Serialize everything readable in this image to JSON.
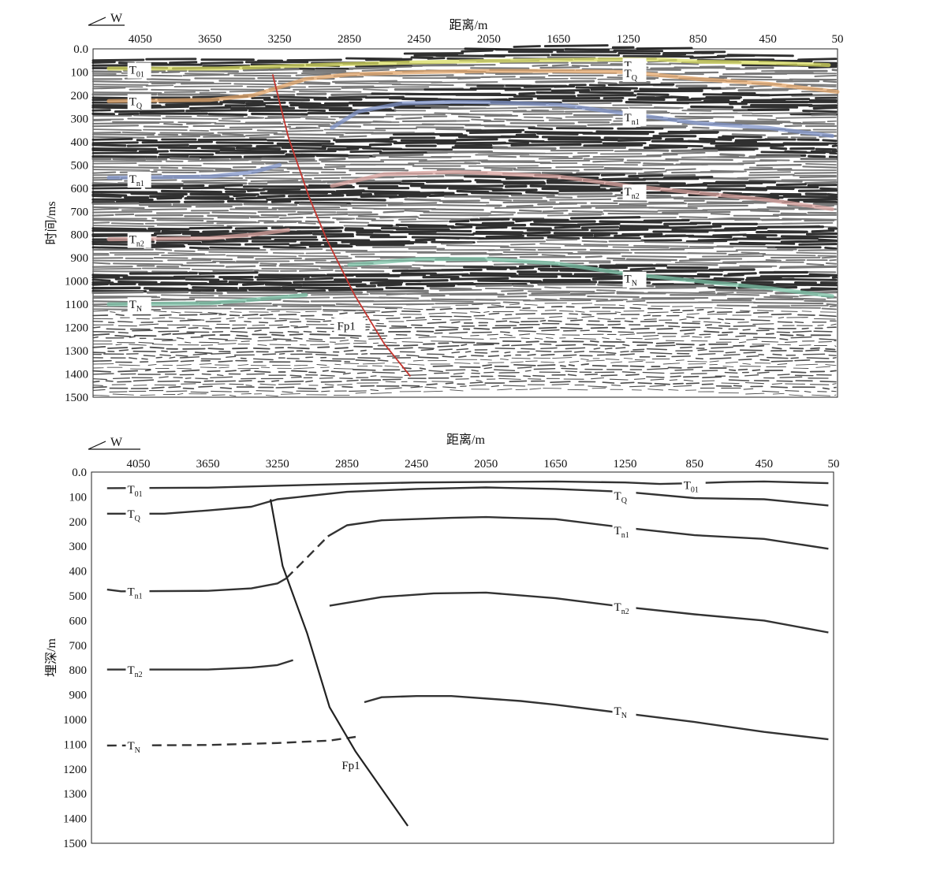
{
  "chart_data": [
    {
      "type": "seismic-section",
      "direction_label": "W",
      "xlabel": "距离/m",
      "ylabel": "时间/ms",
      "x_ticks": [
        4050,
        3650,
        3250,
        2850,
        2450,
        2050,
        1650,
        1250,
        850,
        450,
        50
      ],
      "y_ticks": [
        "0.0",
        "100",
        "200",
        "300",
        "400",
        "500",
        "600",
        "700",
        "800",
        "900",
        "1000",
        "1100",
        "1200",
        "1300",
        "1400",
        "1500"
      ],
      "xlim": [
        4320,
        50
      ],
      "ylim": [
        0,
        1500
      ],
      "horizons": [
        {
          "name": "T01",
          "base": "T",
          "sub": "01",
          "color": "#d8dc60",
          "label_at": [
            4050,
            90
          ],
          "segments": [
            [
              [
                4230,
                85
              ],
              [
                3600,
                85
              ],
              [
                3250,
                75
              ],
              [
                2850,
                65
              ],
              [
                2450,
                58
              ],
              [
                2050,
                52
              ],
              [
                1650,
                48
              ],
              [
                1250,
                45
              ],
              [
                1050,
                47
              ],
              [
                850,
                55
              ],
              [
                450,
                60
              ],
              [
                100,
                70
              ]
            ]
          ],
          "right_label_at": [
            1210,
            70
          ]
        },
        {
          "name": "TQ",
          "base": "T",
          "sub": "Q",
          "color": "#e3a66a",
          "label_at": [
            4050,
            225
          ],
          "segments": [
            [
              [
                4230,
                225
              ],
              [
                3650,
                220
              ],
              [
                3400,
                200
              ],
              [
                3250,
                165
              ],
              [
                3100,
                130
              ],
              [
                2850,
                110
              ],
              [
                2450,
                100
              ],
              [
                2050,
                95
              ],
              [
                1650,
                95
              ],
              [
                1250,
                100
              ],
              [
                850,
                130
              ],
              [
                450,
                150
              ],
              [
                50,
                185
              ]
            ]
          ],
          "right_label_at": [
            1210,
            105
          ]
        },
        {
          "name": "Tn1",
          "base": "T",
          "sub": "n1",
          "color": "#7f93c8",
          "label_at": [
            4050,
            560
          ],
          "segments": [
            [
              [
                4230,
                555
              ],
              [
                3650,
                550
              ],
              [
                3400,
                530
              ],
              [
                3250,
                500
              ]
            ],
            [
              [
                2950,
                340
              ],
              [
                2800,
                270
              ],
              [
                2550,
                235
              ],
              [
                2250,
                228
              ],
              [
                2050,
                230
              ],
              [
                1650,
                240
              ],
              [
                1250,
                280
              ],
              [
                850,
                320
              ],
              [
                450,
                340
              ],
              [
                80,
                375
              ]
            ]
          ],
          "right_label_at": [
            1210,
            295
          ]
        },
        {
          "name": "Tn2",
          "base": "T",
          "sub": "n2",
          "color": "#d9a39f",
          "label_at": [
            4050,
            820
          ],
          "segments": [
            [
              [
                4230,
                820
              ],
              [
                3650,
                815
              ],
              [
                3400,
                800
              ],
              [
                3200,
                780
              ]
            ],
            [
              [
                2950,
                590
              ],
              [
                2650,
                540
              ],
              [
                2250,
                530
              ],
              [
                2050,
                535
              ],
              [
                1650,
                550
              ],
              [
                1250,
                590
              ],
              [
                850,
                620
              ],
              [
                450,
                650
              ],
              [
                80,
                690
              ]
            ]
          ],
          "right_label_at": [
            1210,
            615
          ]
        },
        {
          "name": "TN",
          "base": "T",
          "sub": "N",
          "color": "#79c2a6",
          "label_at": [
            4050,
            1100
          ],
          "segments": [
            [
              [
                4230,
                1100
              ],
              [
                3650,
                1095
              ],
              [
                3400,
                1080
              ],
              [
                3100,
                1060
              ]
            ],
            [
              [
                2850,
                930
              ],
              [
                2450,
                905
              ],
              [
                2050,
                905
              ],
              [
                1650,
                925
              ],
              [
                1250,
                970
              ],
              [
                850,
                1000
              ],
              [
                450,
                1030
              ],
              [
                80,
                1065
              ]
            ]
          ],
          "right_label_at": [
            1210,
            990
          ]
        }
      ],
      "faults": [
        {
          "name": "Fp1",
          "color": "#c4352f",
          "label_at": [
            2920,
            1210
          ],
          "points": [
            [
              3290,
              110
            ],
            [
              3200,
              380
            ],
            [
              3080,
              640
            ],
            [
              2980,
              820
            ],
            [
              2820,
              1060
            ],
            [
              2650,
              1270
            ],
            [
              2500,
              1410
            ]
          ]
        }
      ]
    },
    {
      "type": "geologic-section",
      "direction_label": "W",
      "xlabel": "距离/m",
      "ylabel": "埋深/m",
      "x_ticks": [
        4050,
        3650,
        3250,
        2850,
        2450,
        2050,
        1650,
        1250,
        850,
        450,
        50
      ],
      "y_ticks": [
        "0.0",
        "100",
        "200",
        "300",
        "400",
        "500",
        "600",
        "700",
        "800",
        "900",
        "1000",
        "1100",
        "1200",
        "1300",
        "1400",
        "1500"
      ],
      "xlim": [
        4320,
        50
      ],
      "ylim": [
        0,
        1500
      ],
      "horizons": [
        {
          "name": "T01",
          "base": "T",
          "sub": "01",
          "label_at": [
            4050,
            70
          ],
          "right_label_at": [
            850,
            52
          ],
          "segments": [
            {
              "dashed": false,
              "points": [
                [
                  4230,
                  65
                ],
                [
                  3650,
                  63
                ],
                [
                  3250,
                  55
                ],
                [
                  2850,
                  48
                ],
                [
                  2450,
                  42
                ],
                [
                  2050,
                  40
                ],
                [
                  1650,
                  38
                ],
                [
                  1250,
                  42
                ],
                [
                  1050,
                  48
                ],
                [
                  850,
                  45
                ],
                [
                  650,
                  40
                ],
                [
                  450,
                  38
                ],
                [
                  80,
                  45
                ]
              ]
            }
          ]
        },
        {
          "name": "TQ",
          "base": "T",
          "sub": "Q",
          "label_at": [
            4050,
            168
          ],
          "right_label_at": [
            1250,
            95
          ],
          "segments": [
            {
              "dashed": false,
              "points": [
                [
                  4230,
                  168
                ],
                [
                  3900,
                  168
                ],
                [
                  3650,
                  155
                ],
                [
                  3400,
                  140
                ],
                [
                  3250,
                  110
                ],
                [
                  2850,
                  80
                ],
                [
                  2450,
                  68
                ],
                [
                  2050,
                  62
                ],
                [
                  1650,
                  68
                ],
                [
                  1250,
                  80
                ],
                [
                  850,
                  105
                ],
                [
                  450,
                  110
                ],
                [
                  80,
                  135
                ]
              ]
            }
          ]
        },
        {
          "name": "Tn1",
          "base": "T",
          "sub": "n1",
          "label_at": [
            4050,
            482
          ],
          "right_label_at": [
            1250,
            235
          ],
          "segments": [
            {
              "dashed": false,
              "points": [
                [
                  4230,
                  475
                ],
                [
                  4150,
                  482
                ],
                [
                  3650,
                  480
                ],
                [
                  3400,
                  470
                ],
                [
                  3250,
                  450
                ],
                [
                  3200,
                  430
                ]
              ]
            },
            {
              "dashed": true,
              "points": [
                [
                  3200,
                  430
                ],
                [
                  3100,
                  360
                ],
                [
                  2960,
                  260
                ]
              ]
            },
            {
              "dashed": false,
              "points": [
                [
                  2960,
                  260
                ],
                [
                  2850,
                  215
                ],
                [
                  2650,
                  195
                ],
                [
                  2250,
                  185
                ],
                [
                  2050,
                  182
                ],
                [
                  1650,
                  190
                ],
                [
                  1250,
                  225
                ],
                [
                  850,
                  255
                ],
                [
                  450,
                  270
                ],
                [
                  80,
                  310
                ]
              ]
            }
          ]
        },
        {
          "name": "Tn2",
          "base": "T",
          "sub": "n2",
          "label_at": [
            4050,
            800
          ],
          "right_label_at": [
            1250,
            545
          ],
          "segments": [
            {
              "dashed": false,
              "points": [
                [
                  4230,
                  798
                ],
                [
                  3650,
                  798
                ],
                [
                  3400,
                  790
                ],
                [
                  3250,
                  780
                ],
                [
                  3160,
                  760
                ]
              ]
            },
            {
              "dashed": false,
              "points": [
                [
                  2950,
                  540
                ],
                [
                  2650,
                  505
                ],
                [
                  2350,
                  490
                ],
                [
                  2050,
                  487
                ],
                [
                  1650,
                  510
                ],
                [
                  1250,
                  545
                ],
                [
                  850,
                  575
                ],
                [
                  450,
                  600
                ],
                [
                  80,
                  648
                ]
              ]
            }
          ]
        },
        {
          "name": "TN",
          "base": "T",
          "sub": "N",
          "label_at": [
            4050,
            1105
          ],
          "right_label_at": [
            1250,
            965
          ],
          "segments": [
            {
              "dashed": true,
              "points": [
                [
                  4230,
                  1105
                ],
                [
                  3650,
                  1103
                ],
                [
                  3250,
                  1095
                ],
                [
                  2950,
                  1085
                ],
                [
                  2800,
                  1070
                ]
              ]
            },
            {
              "dashed": false,
              "points": [
                [
                  2750,
                  930
                ],
                [
                  2650,
                  910
                ],
                [
                  2450,
                  905
                ],
                [
                  2250,
                  905
                ],
                [
                  1850,
                  925
                ],
                [
                  1650,
                  940
                ],
                [
                  1250,
                  975
                ],
                [
                  850,
                  1010
                ],
                [
                  450,
                  1050
                ],
                [
                  80,
                  1080
                ]
              ]
            }
          ]
        }
      ],
      "faults": [
        {
          "name": "Fp1",
          "label_at": [
            2880,
            1200
          ],
          "points": [
            [
              3290,
              110
            ],
            [
              3220,
              380
            ],
            [
              3080,
              650
            ],
            [
              2950,
              950
            ],
            [
              2800,
              1130
            ],
            [
              2650,
              1280
            ],
            [
              2500,
              1430
            ]
          ]
        }
      ]
    }
  ]
}
